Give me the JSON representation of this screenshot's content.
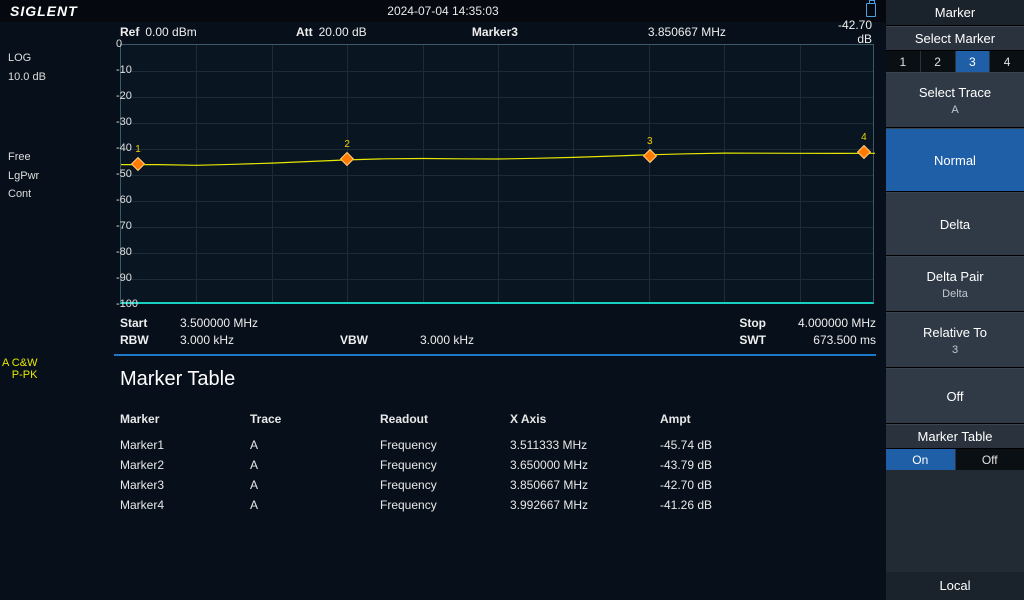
{
  "logo": "SIGLENT",
  "datetime": "2024-07-04  14:35:03",
  "header": {
    "ref_label": "Ref",
    "ref_value": "0.00 dBm",
    "att_label": "Att",
    "att_value": "20.00 dB",
    "marker_label": "Marker3",
    "marker_freq": "3.850667 MHz",
    "marker_amp": "-42.70 dB"
  },
  "left_annotations": {
    "scale_mode": "LOG",
    "scale_div": "10.0 dB",
    "trig": "Free",
    "det": "LgPwr",
    "sweep": "Cont"
  },
  "trace_label": {
    "a": "A",
    "mode": "C&W",
    "det": "P-PK"
  },
  "chart": {
    "ylim": [
      -100,
      0
    ],
    "ytick_step": 10,
    "xlim_mhz": [
      3.5,
      4.0
    ],
    "grid_color": "#1c2d38",
    "frame_color": "#3a5a6a",
    "baseline_color": "#17d0c0",
    "trace_color": "#e6e600",
    "bg_color": "#091622",
    "marker_fill": "#ff7a00",
    "marker_border": "#ffd080",
    "marker_label_color": "#f0d000",
    "trace_points_db": [
      -46,
      -45.7,
      -45.8,
      -45.5,
      -45.3,
      -45.0,
      -44.6,
      -44.2,
      -43.9,
      -43.7,
      -43.5,
      -43.1,
      -42.9,
      -42.7,
      -42.5,
      -42.3,
      -42.0,
      -41.8,
      -41.5,
      -41.3,
      -41.2
    ],
    "markers": [
      {
        "n": "1",
        "x_mhz": 3.511333,
        "y_db": -45.74
      },
      {
        "n": "2",
        "x_mhz": 3.65,
        "y_db": -43.79
      },
      {
        "n": "3",
        "x_mhz": 3.850667,
        "y_db": -42.7
      },
      {
        "n": "4",
        "x_mhz": 3.992667,
        "y_db": -41.26
      }
    ]
  },
  "footer": {
    "start_label": "Start",
    "start_value": "3.500000 MHz",
    "stop_label": "Stop",
    "stop_value": "4.000000 MHz",
    "rbw_label": "RBW",
    "rbw_value": "3.000 kHz",
    "vbw_label": "VBW",
    "vbw_value": "3.000 kHz",
    "swt_label": "SWT",
    "swt_value": "673.500 ms"
  },
  "marker_table": {
    "title": "Marker Table",
    "columns": [
      "Marker",
      "Trace",
      "Readout",
      "X Axis",
      "Ampt"
    ],
    "rows": [
      [
        "Marker1",
        "A",
        "Frequency",
        "3.511333 MHz",
        "-45.74 dB"
      ],
      [
        "Marker2",
        "A",
        "Frequency",
        "3.650000 MHz",
        "-43.79 dB"
      ],
      [
        "Marker3",
        "A",
        "Frequency",
        "3.850667 MHz",
        "-42.70 dB"
      ],
      [
        "Marker4",
        "A",
        "Frequency",
        "3.992667 MHz",
        "-41.26 dB"
      ]
    ]
  },
  "menu": {
    "title": "Marker",
    "select_marker": {
      "label": "Select Marker",
      "options": [
        "1",
        "2",
        "3",
        "4"
      ],
      "selected": "3"
    },
    "select_trace": {
      "label": "Select Trace",
      "value": "A"
    },
    "mode_normal": "Normal",
    "mode_delta": "Delta",
    "mode_delta_pair": {
      "label": "Delta Pair",
      "value": "Delta"
    },
    "relative_to": {
      "label": "Relative To",
      "value": "3"
    },
    "off": "Off",
    "marker_table_btn": {
      "label": "Marker Table",
      "options": [
        "On",
        "Off"
      ],
      "selected": "On"
    },
    "local": "Local"
  }
}
